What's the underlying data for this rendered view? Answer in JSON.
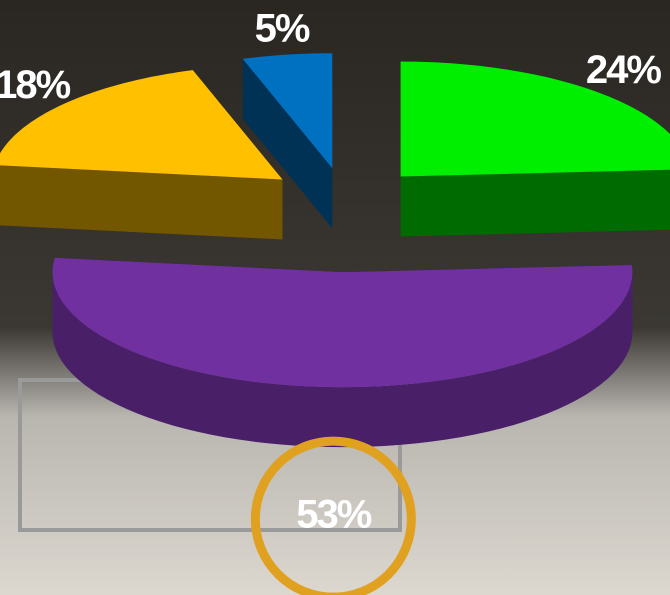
{
  "chart_data": {
    "type": "pie",
    "categories": [
      null,
      null,
      null,
      null
    ],
    "values": [
      24,
      53,
      18,
      5
    ],
    "value_labels": [
      "24%",
      "53%",
      "18%",
      "5%"
    ],
    "colors": [
      "#00ee00",
      "#7030a0",
      "#ffc000",
      "#0070c0"
    ]
  }
}
